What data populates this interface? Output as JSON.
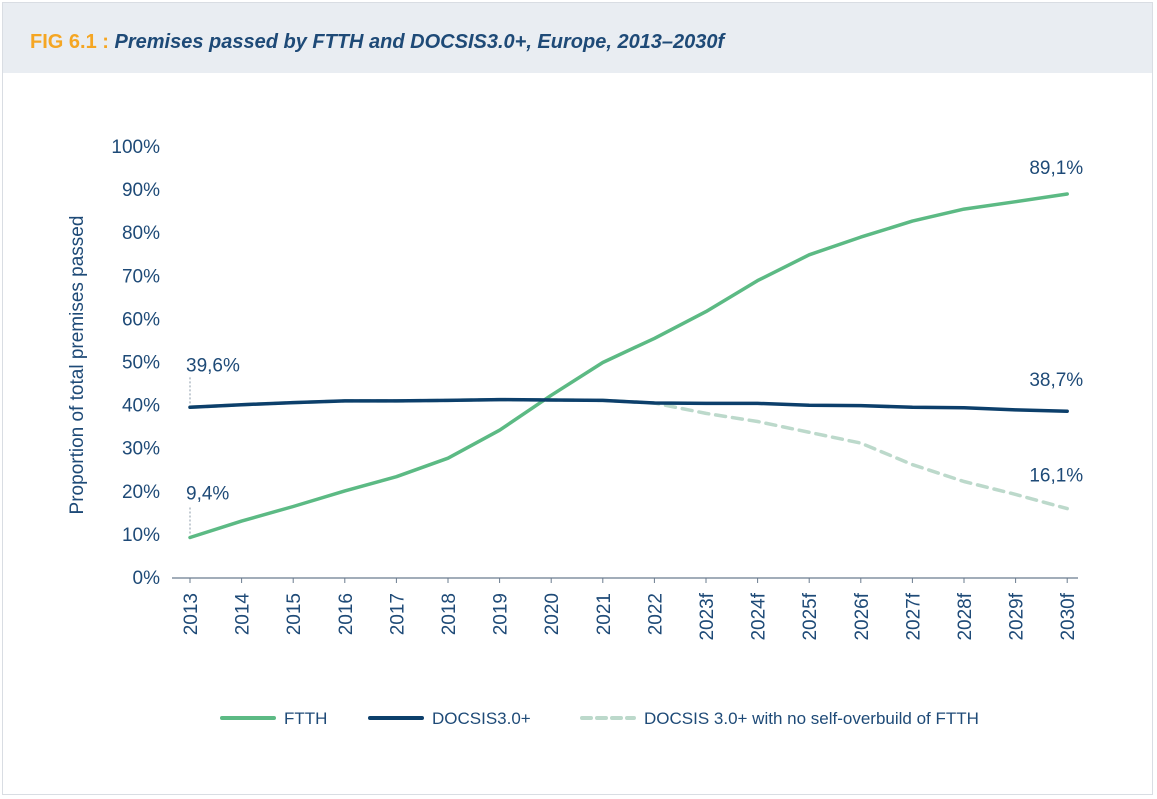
{
  "header": {
    "fig_no": "FIG 6.1",
    "separator": ":",
    "title": "Premises passed by FTTH and DOCSIS3.0+, Europe, 2013–2030f"
  },
  "chart_data": {
    "type": "line",
    "title": "Premises passed by FTTH and DOCSIS3.0+, Europe, 2013–2030f",
    "ylabel": "Proportion of total premises passed",
    "xlabel": "",
    "ylim": [
      0,
      100
    ],
    "y_ticks": [
      "0%",
      "10%",
      "20%",
      "30%",
      "40%",
      "50%",
      "60%",
      "70%",
      "80%",
      "90%",
      "100%"
    ],
    "categories": [
      "2013",
      "2014",
      "2015",
      "2016",
      "2017",
      "2018",
      "2019",
      "2020",
      "2021",
      "2022",
      "2023f",
      "2024f",
      "2025f",
      "2026f",
      "2027f",
      "2028f",
      "2029f",
      "2030f"
    ],
    "series": [
      {
        "name": "FTTH",
        "color": "#5cba84",
        "style": "solid",
        "values": [
          9.4,
          13.2,
          16.6,
          20.2,
          23.5,
          27.8,
          34.3,
          42.4,
          50.0,
          55.6,
          61.8,
          69.0,
          75.0,
          79.1,
          82.8,
          85.6,
          87.3,
          89.1
        ]
      },
      {
        "name": "DOCSIS3.0+",
        "color": "#0c3f6b",
        "style": "solid",
        "values": [
          39.6,
          40.2,
          40.7,
          41.1,
          41.1,
          41.2,
          41.4,
          41.3,
          41.2,
          40.6,
          40.5,
          40.5,
          40.1,
          40.0,
          39.6,
          39.5,
          39.0,
          38.7
        ]
      },
      {
        "name": "DOCSIS 3.0+ with no self-overbuild of FTTH",
        "color": "#bcd9cb",
        "style": "dashed",
        "values": [
          39.6,
          40.2,
          40.7,
          41.1,
          41.1,
          41.2,
          41.4,
          41.3,
          41.2,
          40.6,
          38.2,
          36.3,
          33.8,
          31.3,
          26.3,
          22.4,
          19.4,
          16.1
        ]
      }
    ],
    "annotations": [
      {
        "text": "39,6%",
        "category": "2013",
        "value": 39.6
      },
      {
        "text": "9,4%",
        "category": "2013",
        "value": 9.4
      },
      {
        "text": "89,1%",
        "category": "2030f",
        "value": 89.1
      },
      {
        "text": "38,7%",
        "category": "2030f",
        "value": 38.7
      },
      {
        "text": "16,1%",
        "category": "2030f",
        "value": 16.1
      }
    ],
    "grid": false,
    "legend_position": "bottom"
  }
}
